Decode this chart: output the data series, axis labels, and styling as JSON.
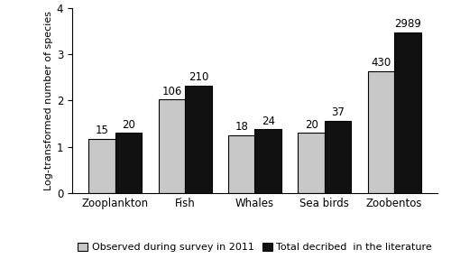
{
  "categories": [
    "Zooplankton",
    "Fish",
    "Whales",
    "Sea birds",
    "Zoobentos"
  ],
  "observed_values": [
    15,
    106,
    18,
    20,
    430
  ],
  "total_values": [
    20,
    210,
    24,
    37,
    2989
  ],
  "observed_log": [
    1.176,
    2.025,
    1.255,
    1.301,
    2.633
  ],
  "total_log": [
    1.301,
    2.322,
    1.38,
    1.568,
    3.476
  ],
  "observed_color": "#c8c8c8",
  "total_color": "#111111",
  "ylabel": "Log-transformed number of species",
  "ylim": [
    0,
    4
  ],
  "yticks": [
    0,
    1,
    2,
    3,
    4
  ],
  "legend_observed": "Observed during survey in 2011",
  "legend_total": "Total decribed  in the literature",
  "bar_width": 0.38,
  "label_fontsize": 8.0,
  "tick_fontsize": 8.5,
  "annotation_fontsize": 8.5
}
